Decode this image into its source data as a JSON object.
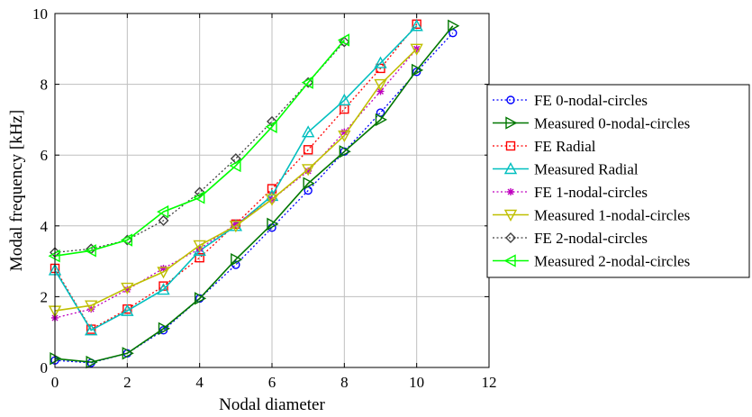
{
  "chart_data": {
    "type": "line",
    "xlabel": "Nodal diameter",
    "ylabel": "Modal frequency [kHz]",
    "xlim": [
      0,
      12
    ],
    "ylim": [
      0,
      10
    ],
    "xticks": [
      0,
      2,
      4,
      6,
      8,
      10,
      12
    ],
    "yticks": [
      0,
      2,
      4,
      6,
      8,
      10
    ],
    "grid": true,
    "legend_position": "right",
    "series": [
      {
        "name": "FE 0-nodal-circles",
        "color": "#0000ff",
        "dash": "dotted",
        "marker": "circle",
        "x": [
          0,
          1,
          2,
          3,
          4,
          5,
          6,
          7,
          8,
          9,
          10,
          11
        ],
        "y": [
          0.2,
          0.13,
          0.4,
          1.05,
          1.95,
          2.9,
          3.95,
          5.0,
          6.1,
          7.2,
          8.35,
          9.45
        ]
      },
      {
        "name": "Measured 0-nodal-circles",
        "color": "#007700",
        "dash": "solid",
        "marker": "triangle-right",
        "x": [
          0,
          1,
          2,
          3,
          4,
          5,
          6,
          7,
          8,
          9,
          10,
          11
        ],
        "y": [
          0.25,
          0.15,
          0.4,
          1.1,
          1.95,
          3.05,
          4.05,
          5.2,
          6.1,
          7.0,
          8.4,
          9.65
        ]
      },
      {
        "name": "FE Radial",
        "color": "#ff0000",
        "dash": "dotted",
        "marker": "square",
        "x": [
          0,
          1,
          2,
          3,
          4,
          5,
          6,
          7,
          8,
          9,
          10
        ],
        "y": [
          2.8,
          1.08,
          1.65,
          2.3,
          3.1,
          4.05,
          5.05,
          6.15,
          7.3,
          8.45,
          9.7
        ]
      },
      {
        "name": "Measured Radial",
        "color": "#00bfbf",
        "dash": "solid",
        "marker": "triangle-up",
        "x": [
          0,
          1,
          2,
          3,
          4,
          5,
          6,
          7,
          8,
          9,
          10
        ],
        "y": [
          2.75,
          1.05,
          1.6,
          2.2,
          3.3,
          4.0,
          4.85,
          6.65,
          7.55,
          8.6,
          9.65
        ]
      },
      {
        "name": "FE 1-nodal-circles",
        "color": "#bf00bf",
        "dash": "dotted",
        "marker": "star",
        "x": [
          0,
          1,
          2,
          3,
          4,
          5,
          6,
          7,
          8,
          9,
          10
        ],
        "y": [
          1.4,
          1.65,
          2.2,
          2.8,
          3.35,
          4.05,
          4.75,
          5.55,
          6.65,
          7.8,
          9.0
        ]
      },
      {
        "name": "Measured 1-nodal-circles",
        "color": "#bfbf00",
        "dash": "solid",
        "marker": "triangle-down",
        "x": [
          0,
          1,
          2,
          3,
          4,
          5,
          6,
          7,
          8,
          9,
          10
        ],
        "y": [
          1.6,
          1.75,
          2.25,
          2.7,
          3.45,
          4.0,
          4.75,
          5.6,
          6.55,
          8.0,
          9.0
        ]
      },
      {
        "name": "FE 2-nodal-circles",
        "color": "#404040",
        "dash": "dotted",
        "marker": "diamond",
        "x": [
          0,
          1,
          2,
          3,
          4,
          5,
          6,
          7,
          8
        ],
        "y": [
          3.25,
          3.35,
          3.6,
          4.15,
          4.95,
          5.9,
          6.95,
          8.05,
          9.2
        ]
      },
      {
        "name": "Measured 2-nodal-circles",
        "color": "#00ff00",
        "dash": "solid",
        "marker": "triangle-left",
        "x": [
          0,
          1,
          2,
          3,
          4,
          5,
          6,
          7,
          8
        ],
        "y": [
          3.15,
          3.3,
          3.6,
          4.4,
          4.8,
          5.7,
          6.8,
          8.05,
          9.25
        ]
      }
    ]
  }
}
